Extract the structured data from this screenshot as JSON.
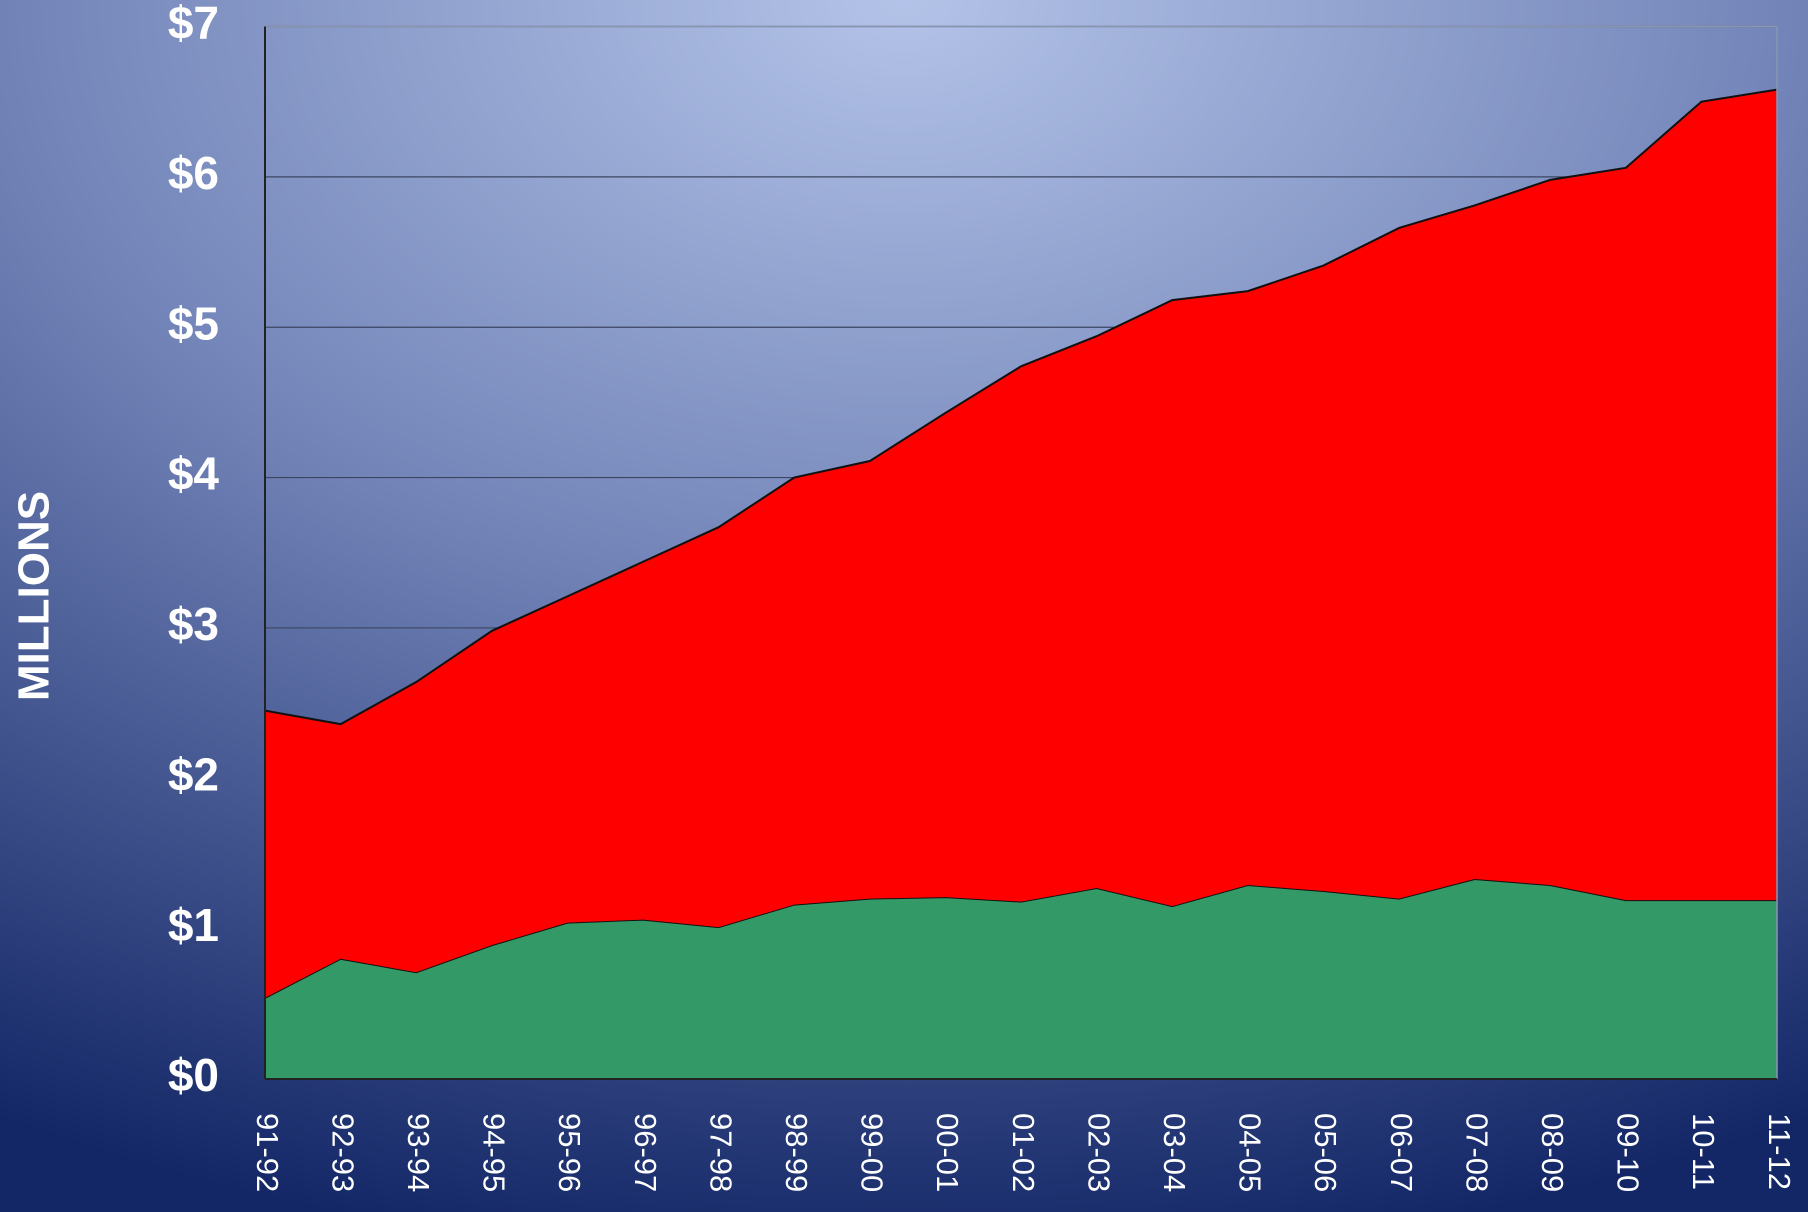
{
  "chart_data": {
    "type": "stacked_area",
    "y_axis_label": "MILLIONS",
    "categories": [
      "91-92",
      "92-93",
      "93-94",
      "94-95",
      "95-96",
      "96-97",
      "97-98",
      "98-99",
      "99-00",
      "00-01",
      "01-02",
      "02-03",
      "03-04",
      "04-05",
      "05-06",
      "06-07",
      "07-08",
      "08-09",
      "09-10",
      "10-11",
      "11-12"
    ],
    "series": [
      {
        "color": "#339966",
        "values": [
          0.54,
          0.8,
          0.71,
          0.89,
          1.04,
          1.06,
          1.01,
          1.16,
          1.2,
          1.21,
          1.18,
          1.27,
          1.15,
          1.29,
          1.25,
          1.2,
          1.33,
          1.29,
          1.19,
          1.19,
          1.19
        ]
      },
      {
        "color": "#ff0000",
        "values": [
          1.91,
          1.56,
          1.93,
          2.09,
          2.17,
          2.38,
          2.66,
          2.84,
          2.91,
          3.22,
          3.56,
          3.67,
          4.03,
          3.95,
          4.16,
          4.46,
          4.48,
          4.69,
          4.87,
          5.31,
          5.39
        ]
      }
    ],
    "ylim": [
      0,
      7
    ],
    "yticks": [
      {
        "value": 0,
        "label": "$0"
      },
      {
        "value": 1,
        "label": "$1"
      },
      {
        "value": 2,
        "label": "$2"
      },
      {
        "value": 3,
        "label": "$3"
      },
      {
        "value": 4,
        "label": "$4"
      },
      {
        "value": 5,
        "label": "$5"
      },
      {
        "value": 6,
        "label": "$6"
      },
      {
        "value": 7,
        "label": "$7"
      }
    ],
    "grid": true
  }
}
